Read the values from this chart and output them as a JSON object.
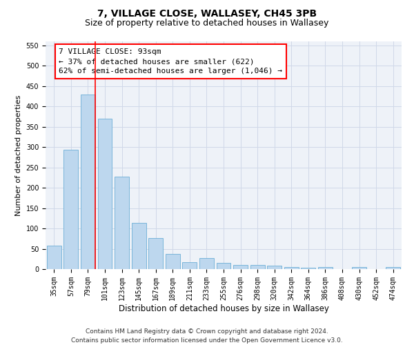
{
  "title": "7, VILLAGE CLOSE, WALLASEY, CH45 3PB",
  "subtitle": "Size of property relative to detached houses in Wallasey",
  "xlabel": "Distribution of detached houses by size in Wallasey",
  "ylabel": "Number of detached properties",
  "categories": [
    "35sqm",
    "57sqm",
    "79sqm",
    "101sqm",
    "123sqm",
    "145sqm",
    "167sqm",
    "189sqm",
    "211sqm",
    "233sqm",
    "255sqm",
    "276sqm",
    "298sqm",
    "320sqm",
    "342sqm",
    "364sqm",
    "386sqm",
    "408sqm",
    "430sqm",
    "452sqm",
    "474sqm"
  ],
  "values": [
    57,
    293,
    430,
    370,
    228,
    113,
    76,
    38,
    17,
    27,
    15,
    11,
    10,
    8,
    5,
    4,
    5,
    0,
    5,
    0,
    5
  ],
  "bar_color": "#bdd7ee",
  "bar_edge_color": "#6baed6",
  "vline_color": "red",
  "annotation_line1": "7 VILLAGE CLOSE: 93sqm",
  "annotation_line2": "← 37% of detached houses are smaller (622)",
  "annotation_line3": "62% of semi-detached houses are larger (1,046) →",
  "annotation_box_color": "white",
  "annotation_box_edge_color": "red",
  "ylim": [
    0,
    560
  ],
  "yticks": [
    0,
    50,
    100,
    150,
    200,
    250,
    300,
    350,
    400,
    450,
    500,
    550
  ],
  "grid_color": "#d0d8e8",
  "bg_color": "#eef2f8",
  "footnote_line1": "Contains HM Land Registry data © Crown copyright and database right 2024.",
  "footnote_line2": "Contains public sector information licensed under the Open Government Licence v3.0.",
  "title_fontsize": 10,
  "subtitle_fontsize": 9,
  "xlabel_fontsize": 8.5,
  "ylabel_fontsize": 8,
  "tick_fontsize": 7,
  "annot_fontsize": 8,
  "footnote_fontsize": 6.5
}
